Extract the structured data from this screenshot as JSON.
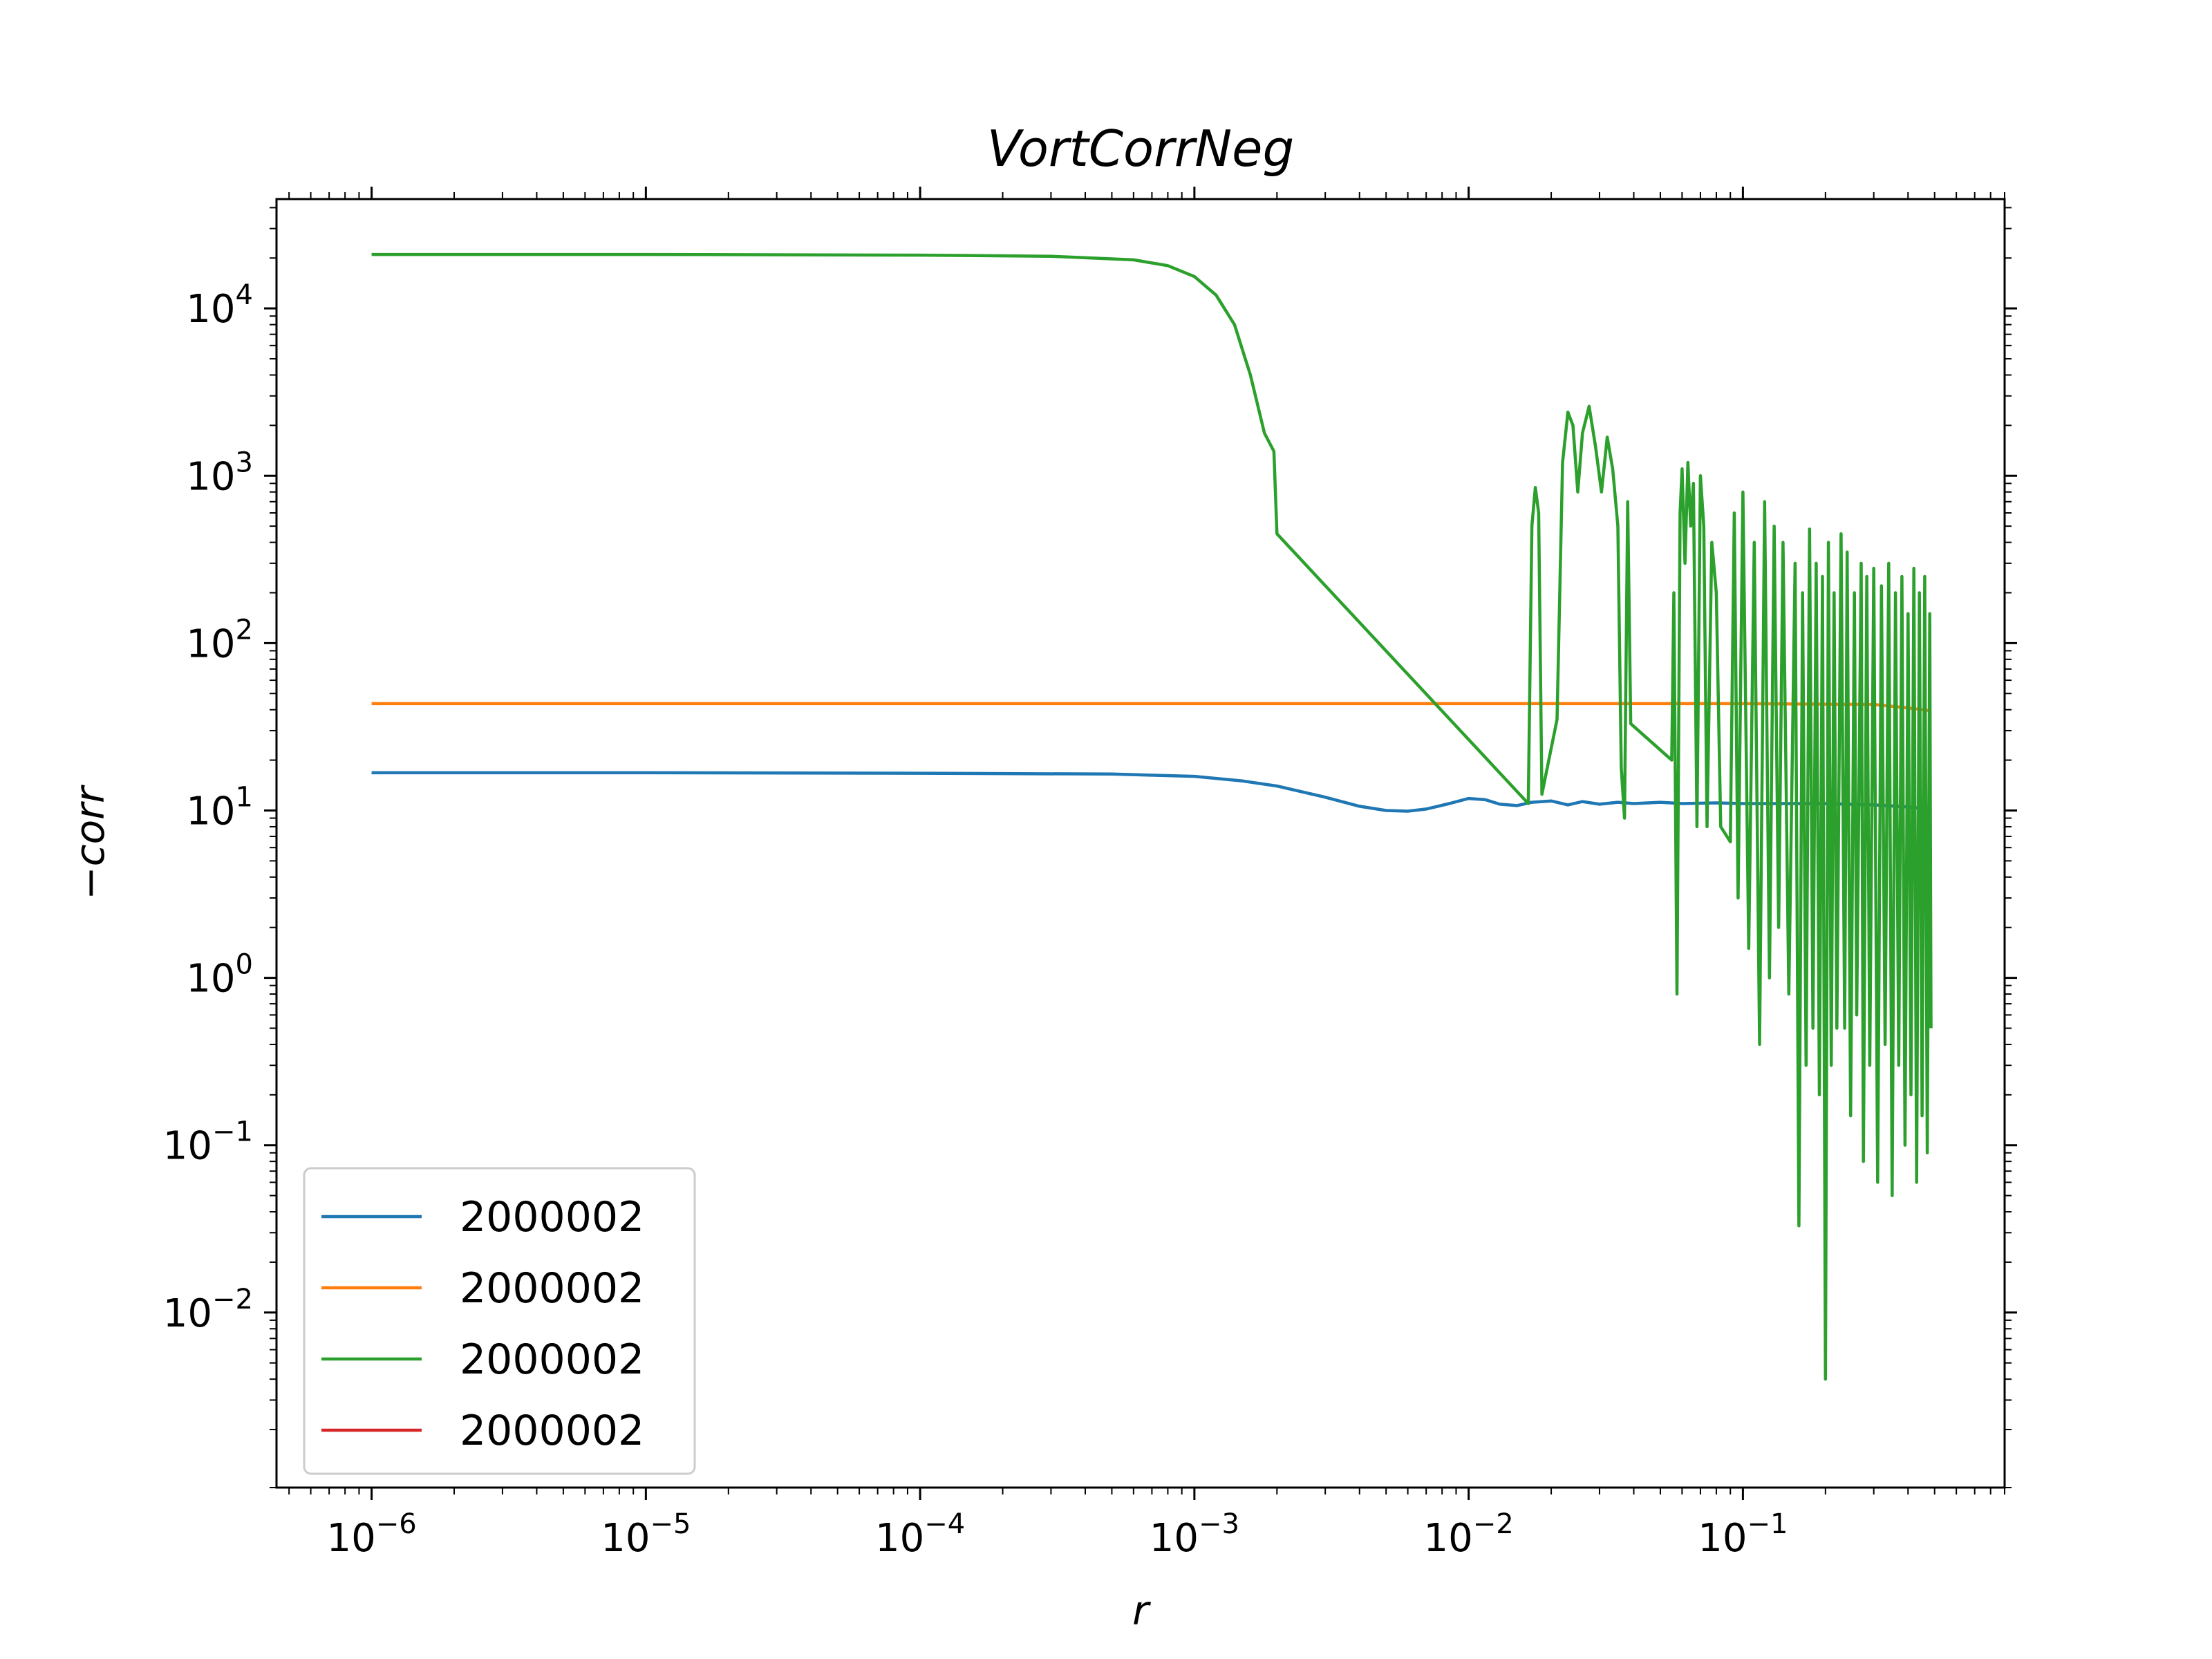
{
  "chart_data": {
    "type": "line",
    "title": "VortCorrNeg",
    "xlabel": "r",
    "ylabel": "−corr",
    "xscale": "log",
    "yscale": "log",
    "xlim": [
      4.5e-07,
      0.9
    ],
    "ylim": [
      0.0009,
      45000
    ],
    "xticks": [
      {
        "value": 1e-06,
        "base": "10",
        "exp": "−6"
      },
      {
        "value": 1e-05,
        "base": "10",
        "exp": "−5"
      },
      {
        "value": 0.0001,
        "base": "10",
        "exp": "−4"
      },
      {
        "value": 0.001,
        "base": "10",
        "exp": "−3"
      },
      {
        "value": 0.01,
        "base": "10",
        "exp": "−2"
      },
      {
        "value": 0.1,
        "base": "10",
        "exp": "−1"
      }
    ],
    "yticks": [
      {
        "value": 0.01,
        "base": "10",
        "exp": "−2"
      },
      {
        "value": 0.1,
        "base": "10",
        "exp": "−1"
      },
      {
        "value": 1,
        "base": "10",
        "exp": "0"
      },
      {
        "value": 10,
        "base": "10",
        "exp": "1"
      },
      {
        "value": 100,
        "base": "10",
        "exp": "2"
      },
      {
        "value": 1000,
        "base": "10",
        "exp": "3"
      },
      {
        "value": 10000,
        "base": "10",
        "exp": "4"
      }
    ],
    "grid": false,
    "legend_position": "lower-left",
    "series": [
      {
        "name": "2000002",
        "color": "#1f77b4",
        "points": [
          [
            1e-06,
            16.8
          ],
          [
            1e-05,
            16.8
          ],
          [
            0.0001,
            16.7
          ],
          [
            0.0005,
            16.5
          ],
          [
            0.001,
            16.0
          ],
          [
            0.0015,
            15.0
          ],
          [
            0.002,
            14.0
          ],
          [
            0.003,
            12.0
          ],
          [
            0.004,
            10.6
          ],
          [
            0.005,
            10.0
          ],
          [
            0.006,
            9.9
          ],
          [
            0.007,
            10.2
          ],
          [
            0.0085,
            11.0
          ],
          [
            0.01,
            11.8
          ],
          [
            0.0115,
            11.6
          ],
          [
            0.013,
            10.9
          ],
          [
            0.015,
            10.7
          ],
          [
            0.017,
            11.2
          ],
          [
            0.02,
            11.4
          ],
          [
            0.023,
            10.8
          ],
          [
            0.026,
            11.3
          ],
          [
            0.03,
            10.9
          ],
          [
            0.035,
            11.2
          ],
          [
            0.04,
            11.0
          ],
          [
            0.05,
            11.2
          ],
          [
            0.06,
            11.0
          ],
          [
            0.08,
            11.1
          ],
          [
            0.1,
            11.0
          ],
          [
            0.15,
            11.0
          ],
          [
            0.2,
            11.0
          ],
          [
            0.3,
            10.8
          ],
          [
            0.4,
            10.5
          ],
          [
            0.48,
            10.2
          ]
        ]
      },
      {
        "name": "2000002",
        "color": "#ff7f0e",
        "points": [
          [
            1e-06,
            43.5
          ],
          [
            0.001,
            43.5
          ],
          [
            0.01,
            43.5
          ],
          [
            0.1,
            43.5
          ],
          [
            0.3,
            43.0
          ],
          [
            0.4,
            41.0
          ],
          [
            0.48,
            39.5
          ]
        ]
      },
      {
        "name": "2000002",
        "color": "#2ca02c",
        "points": [
          [
            1e-06,
            21000
          ],
          [
            1e-05,
            21000
          ],
          [
            0.0001,
            20800
          ],
          [
            0.0003,
            20500
          ],
          [
            0.0006,
            19500
          ],
          [
            0.0008,
            18000
          ],
          [
            0.001,
            15500
          ],
          [
            0.0012,
            12000
          ],
          [
            0.0014,
            8000
          ],
          [
            0.0016,
            4000
          ],
          [
            0.0018,
            1800
          ],
          [
            0.00195,
            1400
          ],
          [
            0.002,
            450
          ],
          [
            0.0165,
            11
          ],
          [
            0.017,
            500
          ],
          [
            0.0175,
            850
          ],
          [
            0.018,
            600
          ],
          [
            0.0185,
            12.5
          ],
          [
            0.021,
            35
          ],
          [
            0.022,
            1200
          ],
          [
            0.023,
            2400
          ],
          [
            0.024,
            2000
          ],
          [
            0.025,
            800
          ],
          [
            0.026,
            1800
          ],
          [
            0.0275,
            2600
          ],
          [
            0.029,
            1500
          ],
          [
            0.0305,
            800
          ],
          [
            0.032,
            1700
          ],
          [
            0.0335,
            1100
          ],
          [
            0.035,
            500
          ],
          [
            0.036,
            18
          ],
          [
            0.037,
            9
          ],
          [
            0.038,
            700
          ],
          [
            0.039,
            33
          ],
          [
            0.055,
            20
          ],
          [
            0.056,
            200
          ],
          [
            0.0575,
            0.8
          ],
          [
            0.059,
            600
          ],
          [
            0.06,
            1100
          ],
          [
            0.0615,
            300
          ],
          [
            0.063,
            1200
          ],
          [
            0.0645,
            500
          ],
          [
            0.066,
            900
          ],
          [
            0.068,
            8
          ],
          [
            0.07,
            1000
          ],
          [
            0.072,
            500
          ],
          [
            0.074,
            8
          ],
          [
            0.077,
            400
          ],
          [
            0.08,
            200
          ],
          [
            0.083,
            8
          ],
          [
            0.09,
            6.5
          ],
          [
            0.093,
            600
          ],
          [
            0.096,
            3
          ],
          [
            0.1,
            800
          ],
          [
            0.105,
            1.5
          ],
          [
            0.11,
            400
          ],
          [
            0.115,
            0.4
          ],
          [
            0.12,
            700
          ],
          [
            0.125,
            1
          ],
          [
            0.13,
            500
          ],
          [
            0.135,
            2
          ],
          [
            0.14,
            400
          ],
          [
            0.147,
            0.8
          ],
          [
            0.155,
            300
          ],
          [
            0.16,
            0.033
          ],
          [
            0.165,
            200
          ],
          [
            0.17,
            0.3
          ],
          [
            0.175,
            480
          ],
          [
            0.18,
            0.5
          ],
          [
            0.185,
            300
          ],
          [
            0.19,
            0.2
          ],
          [
            0.195,
            250
          ],
          [
            0.2,
            0.004
          ],
          [
            0.205,
            400
          ],
          [
            0.21,
            0.3
          ],
          [
            0.215,
            200
          ],
          [
            0.22,
            0.5
          ],
          [
            0.228,
            450
          ],
          [
            0.235,
            0.5
          ],
          [
            0.24,
            350
          ],
          [
            0.247,
            0.15
          ],
          [
            0.255,
            200
          ],
          [
            0.26,
            0.6
          ],
          [
            0.27,
            300
          ],
          [
            0.275,
            0.08
          ],
          [
            0.283,
            250
          ],
          [
            0.29,
            0.3
          ],
          [
            0.3,
            280
          ],
          [
            0.31,
            0.06
          ],
          [
            0.32,
            220
          ],
          [
            0.33,
            0.4
          ],
          [
            0.34,
            300
          ],
          [
            0.35,
            0.05
          ],
          [
            0.36,
            200
          ],
          [
            0.37,
            0.3
          ],
          [
            0.38,
            250
          ],
          [
            0.39,
            0.1
          ],
          [
            0.4,
            150
          ],
          [
            0.41,
            0.2
          ],
          [
            0.42,
            280
          ],
          [
            0.43,
            0.06
          ],
          [
            0.44,
            200
          ],
          [
            0.45,
            0.15
          ],
          [
            0.46,
            250
          ],
          [
            0.47,
            0.09
          ],
          [
            0.48,
            150
          ],
          [
            0.485,
            0.5
          ]
        ]
      },
      {
        "name": "2000002",
        "color": "#d62728",
        "points": []
      }
    ]
  }
}
